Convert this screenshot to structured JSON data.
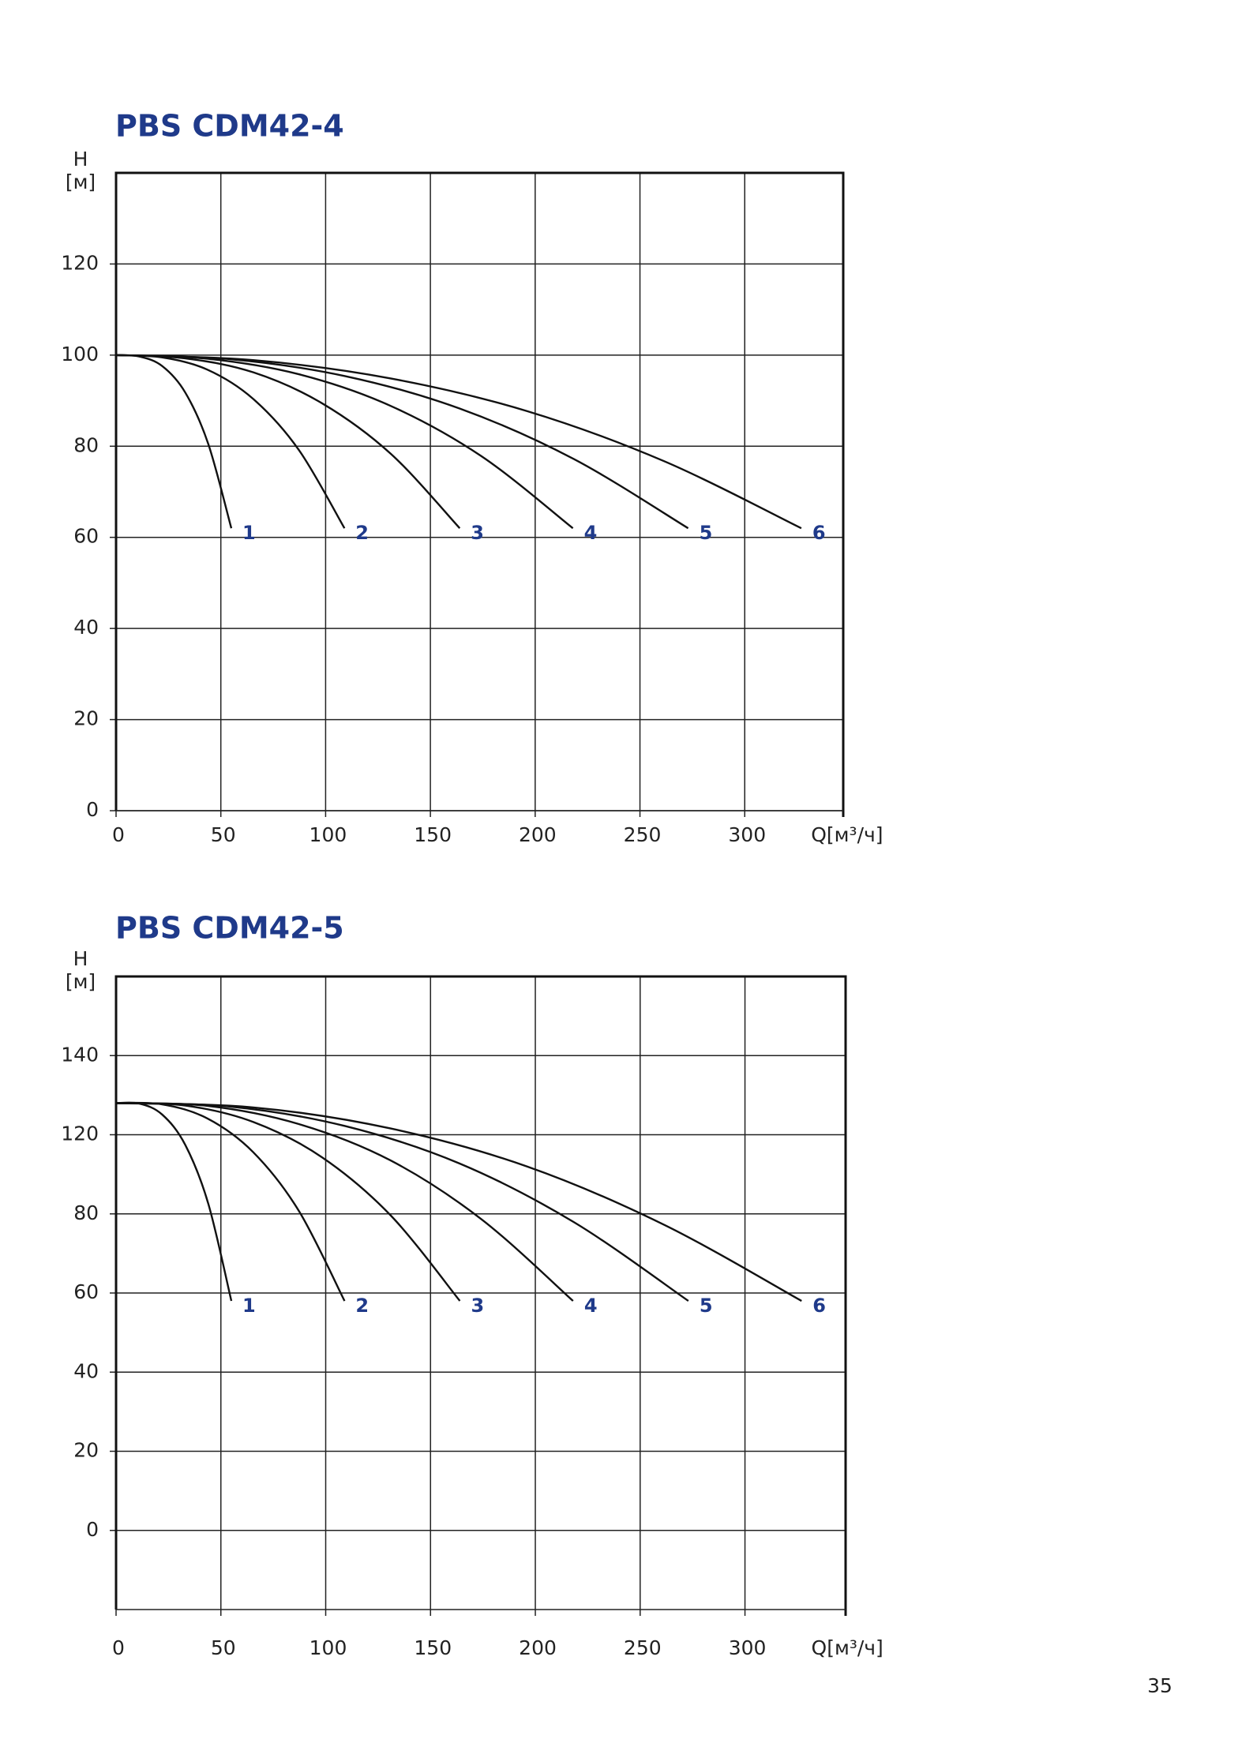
{
  "page_number": "35",
  "chart_data": [
    {
      "type": "line",
      "title": "PBS CDM42-4",
      "y_label": [
        "H",
        "[м]"
      ],
      "x_label": "Q[м³/ч]",
      "xlim": [
        0,
        347
      ],
      "xticks": [
        0,
        50,
        100,
        150,
        200,
        250,
        300
      ],
      "ylim": [
        0,
        140
      ],
      "yticks": [
        0,
        20,
        40,
        60,
        80,
        100,
        120
      ],
      "grid": true,
      "color": "#111111",
      "label_color": "#1f3a8a",
      "series": [
        {
          "name": "1",
          "x": [
            0,
            11,
            22,
            33,
            44,
            55
          ],
          "values": [
            100,
            99.7,
            97.6,
            91.8,
            80.5,
            62
          ]
        },
        {
          "name": "2",
          "x": [
            0,
            21.8,
            43.6,
            65.4,
            87.2,
            109
          ],
          "values": [
            100,
            99.5,
            96.8,
            90.4,
            79.2,
            62
          ]
        },
        {
          "name": "3",
          "x": [
            0,
            32.8,
            65.6,
            98.4,
            131.2,
            164
          ],
          "values": [
            100,
            99.3,
            96.2,
            89.4,
            78.3,
            62
          ]
        },
        {
          "name": "4",
          "x": [
            0,
            43.6,
            87.2,
            130.8,
            174.4,
            218
          ],
          "values": [
            100,
            99.2,
            95.8,
            88.9,
            77.8,
            62
          ]
        },
        {
          "name": "5",
          "x": [
            0,
            54.6,
            109.2,
            163.8,
            218.4,
            273
          ],
          "values": [
            100,
            99.1,
            95.4,
            88.3,
            77.2,
            62
          ]
        },
        {
          "name": "6",
          "x": [
            0,
            65.4,
            130.8,
            196.2,
            261.6,
            327
          ],
          "values": [
            100,
            98.9,
            94.9,
            87.7,
            76.7,
            62
          ]
        }
      ]
    },
    {
      "type": "line",
      "title": "PBS CDM42-5",
      "y_label": [
        "H",
        "[м]"
      ],
      "x_label": "Q[м³/ч]",
      "xlim": [
        0,
        348
      ],
      "xticks": [
        0,
        50,
        100,
        150,
        200,
        250,
        300
      ],
      "ylim": [
        -20,
        160
      ],
      "yticks": [
        0,
        20,
        40,
        60,
        80,
        120,
        140
      ],
      "grid": true,
      "color": "#111111",
      "label_color": "#1f3a8a",
      "series": [
        {
          "name": "1",
          "x": [
            0,
            11,
            22,
            33,
            44,
            55
          ],
          "values": [
            128,
            127.9,
            125.1,
            114.9,
            85.1,
            58
          ]
        },
        {
          "name": "2",
          "x": [
            0,
            21.8,
            43.6,
            65.4,
            87.2,
            109
          ],
          "values": [
            128,
            127.7,
            124.1,
            111.2,
            81.5,
            58
          ]
        },
        {
          "name": "3",
          "x": [
            0,
            32.8,
            65.6,
            98.4,
            131.2,
            164
          ],
          "values": [
            128,
            127.4,
            123.2,
            108.5,
            79.5,
            58
          ]
        },
        {
          "name": "4",
          "x": [
            0,
            43.6,
            87.2,
            130.8,
            174.4,
            218
          ],
          "values": [
            128,
            127.3,
            122.7,
            107.1,
            78.6,
            58
          ]
        },
        {
          "name": "5",
          "x": [
            0,
            54.6,
            109.2,
            163.8,
            218.4,
            273
          ],
          "values": [
            128,
            127.1,
            122.2,
            105.5,
            77.9,
            58
          ]
        },
        {
          "name": "6",
          "x": [
            0,
            65.4,
            130.8,
            196.2,
            261.6,
            327
          ],
          "values": [
            128,
            126.9,
            121.6,
            103.9,
            77.2,
            58
          ]
        }
      ]
    }
  ]
}
